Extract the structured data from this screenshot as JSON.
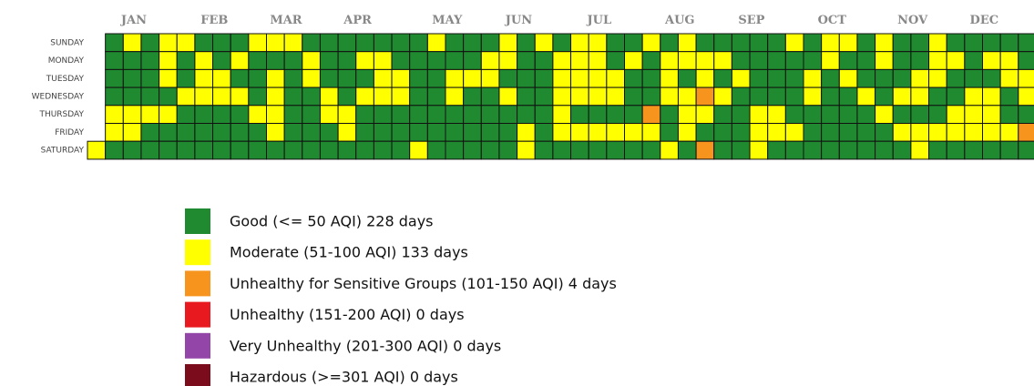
{
  "chart_data": {
    "type": "calendar_heatmap",
    "months": [
      "JAN",
      "FEB",
      "MAR",
      "APR",
      "MAY",
      "JUN",
      "JUL",
      "AUG",
      "SEP",
      "OCT",
      "NOV",
      "DEC"
    ],
    "weekdays": [
      "SUNDAY",
      "MONDAY",
      "TUESDAY",
      "WEDNESDAY",
      "THURSDAY",
      "FRIDAY",
      "SATURDAY"
    ],
    "categories": [
      {
        "name": "Good (<= 50 AQI) 228 days",
        "color": "#1f8a2f"
      },
      {
        "name": "Moderate (51-100 AQI) 133 days",
        "color": "#ffff00"
      },
      {
        "name": "Unhealthy for Sensitive Groups (101-150 AQI)   4 days",
        "color": "#f7941d"
      },
      {
        "name": "Unhealthy (151-200 AQI)   0 days",
        "color": "#e8191f"
      },
      {
        "name": "Very Unhealthy (201-300 AQI)   0 days",
        "color": "#9446a8"
      },
      {
        "name": "Hazardous (>=301 AQI)   0 days",
        "color": "#7b0c1b"
      }
    ],
    "weeks": [
      [
        1
      ],
      [
        0,
        0,
        0,
        0,
        1,
        1,
        0
      ],
      [
        1,
        0,
        0,
        0,
        1,
        1,
        0
      ],
      [
        0,
        0,
        0,
        0,
        1,
        0,
        0
      ],
      [
        1,
        1,
        1,
        0,
        1,
        0,
        0
      ],
      [
        1,
        0,
        0,
        1,
        0,
        0,
        0
      ],
      [
        0,
        1,
        1,
        1,
        0,
        0,
        0
      ],
      [
        0,
        0,
        1,
        1,
        0,
        0,
        0
      ],
      [
        0,
        1,
        0,
        1,
        0,
        0,
        0
      ],
      [
        1,
        0,
        0,
        0,
        1,
        0,
        0
      ],
      [
        1,
        0,
        1,
        1,
        1,
        1,
        0
      ],
      [
        1,
        0,
        0,
        0,
        0,
        0,
        0
      ],
      [
        0,
        1,
        1,
        0,
        0,
        0,
        0
      ],
      [
        0,
        0,
        0,
        1,
        1,
        0,
        0
      ],
      [
        0,
        0,
        0,
        0,
        1,
        1,
        0
      ],
      [
        0,
        1,
        0,
        1,
        0,
        0,
        0
      ],
      [
        0,
        1,
        1,
        1,
        0,
        0,
        0
      ],
      [
        0,
        0,
        1,
        1,
        0,
        0,
        0
      ],
      [
        0,
        0,
        0,
        0,
        0,
        0,
        1
      ],
      [
        1,
        0,
        0,
        0,
        0,
        0,
        0
      ],
      [
        0,
        0,
        1,
        1,
        0,
        0,
        0
      ],
      [
        0,
        0,
        1,
        0,
        0,
        0,
        0
      ],
      [
        0,
        1,
        1,
        0,
        0,
        0,
        0
      ],
      [
        1,
        1,
        0,
        1,
        0,
        0,
        0
      ],
      [
        0,
        0,
        0,
        0,
        0,
        1,
        1
      ],
      [
        1,
        0,
        0,
        0,
        0,
        0,
        0
      ],
      [
        0,
        1,
        1,
        1,
        1,
        1,
        0
      ],
      [
        1,
        1,
        1,
        1,
        0,
        1,
        0
      ],
      [
        1,
        1,
        1,
        1,
        0,
        1,
        0
      ],
      [
        0,
        0,
        1,
        1,
        0,
        1,
        0
      ],
      [
        0,
        1,
        0,
        0,
        0,
        1,
        0
      ],
      [
        1,
        0,
        0,
        0,
        2,
        1,
        0
      ],
      [
        0,
        1,
        1,
        1,
        0,
        0,
        1
      ],
      [
        1,
        1,
        0,
        1,
        1,
        1,
        0
      ],
      [
        0,
        1,
        1,
        2,
        1,
        0,
        2
      ],
      [
        0,
        1,
        0,
        1,
        0,
        0,
        0
      ],
      [
        0,
        0,
        1,
        0,
        0,
        0,
        0
      ],
      [
        0,
        0,
        0,
        0,
        1,
        1,
        1
      ],
      [
        0,
        0,
        0,
        0,
        1,
        1,
        0
      ],
      [
        1,
        0,
        0,
        0,
        0,
        1,
        0
      ],
      [
        0,
        0,
        1,
        1,
        0,
        0,
        0
      ],
      [
        1,
        1,
        0,
        0,
        0,
        0,
        0
      ],
      [
        1,
        0,
        1,
        0,
        0,
        0,
        0
      ],
      [
        0,
        0,
        0,
        1,
        0,
        0,
        0
      ],
      [
        1,
        1,
        0,
        0,
        1,
        0,
        0
      ],
      [
        0,
        0,
        0,
        1,
        0,
        1,
        0
      ],
      [
        0,
        0,
        1,
        1,
        0,
        1,
        1
      ],
      [
        1,
        1,
        1,
        0,
        0,
        1,
        0
      ],
      [
        0,
        1,
        0,
        0,
        1,
        1,
        0
      ],
      [
        0,
        0,
        0,
        1,
        1,
        1,
        0
      ],
      [
        0,
        1,
        0,
        1,
        1,
        1,
        0
      ],
      [
        0,
        1,
        1,
        0,
        0,
        1,
        0
      ],
      [
        0,
        0,
        1,
        1,
        0,
        2,
        0
      ]
    ]
  }
}
